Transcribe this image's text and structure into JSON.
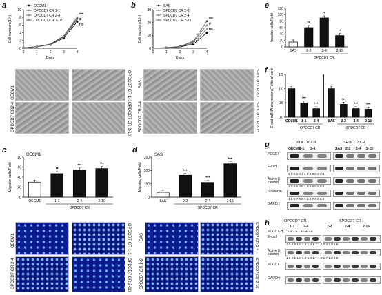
{
  "panels": {
    "a": {
      "label": "a",
      "chart_data": {
        "type": "line",
        "x": [
          0,
          1,
          2,
          3,
          4
        ],
        "series": [
          {
            "name": "OECM1",
            "values": [
              0.1,
              0.4,
              0.9,
              2.7,
              6.9
            ]
          },
          {
            "name": "OPDCD7 CR 1-1",
            "values": [
              0.1,
              0.4,
              1.0,
              3.0,
              7.7
            ]
          },
          {
            "name": "OPDCD7 CR 2-4",
            "values": [
              0.1,
              0.45,
              1.1,
              3.2,
              8.1
            ]
          },
          {
            "name": "OPDCD7 CR 2-10",
            "values": [
              0.1,
              0.42,
              1.0,
              3.0,
              7.4
            ]
          }
        ],
        "xlabel": "Days",
        "ylabel": "Cell numbers(10⁵)",
        "ylim": [
          0,
          10
        ],
        "yticks": [
          "0",
          "2",
          "4",
          "6",
          "8",
          "10"
        ],
        "xticks": [
          "0",
          "1",
          "2",
          "3",
          "4"
        ],
        "sig": [
          "***",
          "#",
          "ns"
        ]
      },
      "images": [
        {
          "name": "OECM1"
        },
        {
          "name": "OPDCD7 CR 1-1"
        },
        {
          "name": "OPDCD7 CR2-4"
        },
        {
          "name": "OPDCD7 CR 2-10"
        }
      ]
    },
    "b": {
      "label": "b",
      "chart_data": {
        "type": "line",
        "x": [
          0,
          1,
          2,
          3,
          4
        ],
        "series": [
          {
            "name": "SAS",
            "values": [
              0.1,
              0.4,
              1.0,
              3.2,
              12.0
            ]
          },
          {
            "name": "SPDCD7 CR 2-2",
            "values": [
              0.1,
              0.5,
              1.4,
              5.5,
              21.0
            ]
          },
          {
            "name": "SPDCD7 CR 2-4",
            "values": [
              0.1,
              0.5,
              1.3,
              5.0,
              18.0
            ]
          },
          {
            "name": "SPDCD7 CR 2-15",
            "values": [
              0.1,
              0.45,
              1.1,
              4.0,
              15.0
            ]
          }
        ],
        "xlabel": "Days",
        "ylabel": "Cell numbers(10⁵)",
        "ylim": [
          0,
          30
        ],
        "yticks": [
          "0",
          "10",
          "20",
          "30"
        ],
        "xticks": [
          "0",
          "1",
          "2",
          "3",
          "4"
        ],
        "sig": [
          "***",
          "#",
          "ns"
        ]
      },
      "images": [
        {
          "name": "SAS"
        },
        {
          "name": "SPDCD7 CR 2-2"
        },
        {
          "name": "SPDCD7 CR 2-4"
        },
        {
          "name": "SPDCD7 CR 2-15"
        }
      ]
    },
    "c": {
      "label": "c",
      "chart_data": {
        "type": "bar",
        "title": "OECM1",
        "categories": [
          "OECM1",
          "1-1",
          "2-4",
          "2-10"
        ],
        "values": [
          30,
          47,
          54,
          57
        ],
        "sig": [
          "",
          "**",
          "***",
          "***"
        ],
        "ylabel": "Migrated cells/Field",
        "ylim": [
          0,
          80
        ],
        "yticks": [
          "0",
          "20",
          "40",
          "60",
          "80"
        ],
        "group_label": "OPDCD7 CR"
      },
      "images": [
        {
          "name": "OECM1"
        },
        {
          "name": "OPDCD7 CR 1-1"
        },
        {
          "name": "OPDCD7 CR 2-4"
        },
        {
          "name": "OPDCD7 CR 2-10"
        }
      ]
    },
    "d": {
      "label": "d",
      "chart_data": {
        "type": "bar",
        "title": "SAS",
        "categories": [
          "SAS",
          "2-2",
          "2-4",
          "2-15"
        ],
        "values": [
          18,
          82,
          55,
          125
        ],
        "sig": [
          "",
          "***",
          "***",
          "***"
        ],
        "ylabel": "Migrated cells/Field",
        "ylim": [
          0,
          150
        ],
        "yticks": [
          "0",
          "50",
          "100",
          "150"
        ],
        "group_label": "SPDCD7 CR"
      },
      "images": [
        {
          "name": "SAS"
        },
        {
          "name": "SPDCD7 CR 2-4"
        },
        {
          "name": "SPDCD7 CR 2-2"
        },
        {
          "name": "SPDCD7 CR 2-15"
        }
      ]
    },
    "e": {
      "label": "e",
      "chart_data": {
        "type": "bar",
        "categories": [
          "SAS",
          "2-2",
          "2-4",
          "2-15"
        ],
        "values": [
          15,
          60,
          90,
          35
        ],
        "sig": [
          "",
          "**",
          "*",
          "**"
        ],
        "ylabel": "Invaded cells/Field",
        "ylim": [
          0,
          120
        ],
        "yticks": [
          "0",
          "20",
          "40",
          "60",
          "80",
          "100",
          "120"
        ],
        "group_label": "SPDCD7 CR"
      }
    },
    "f": {
      "label": "f",
      "chart_data": {
        "type": "bar",
        "categories": [
          "OECM1",
          "1-1",
          "2-4",
          "SAS",
          "2-2",
          "2-4",
          "2-15"
        ],
        "values": [
          1.0,
          0.5,
          0.3,
          1.0,
          0.45,
          0.3,
          0.28
        ],
        "sig": [
          "",
          "***",
          "***",
          "",
          "***",
          "***",
          "***"
        ],
        "ylabel": "E-cad mRNA expression (Folds of control)",
        "ylim": [
          0,
          1.5
        ],
        "yticks": [
          "0.0",
          "0.5",
          "1.0",
          "1.5"
        ],
        "group_labels": [
          "OPDCD7 CR",
          "SPDCD7 CR"
        ]
      }
    },
    "g": {
      "label": "g",
      "groups": [
        "OPDCD7 CR",
        "SPDCD7 CR"
      ],
      "lanes_left": [
        "OECM1",
        "1-1",
        "2-4"
      ],
      "lanes_right": [
        "SAS",
        "2-2",
        "2-4",
        "2-15"
      ],
      "rows": [
        {
          "name": "PDCD7",
          "nums": ""
        },
        {
          "name": "E-cad",
          "nums": "1.0  0.2  0.1   1.0  0.3  0.3  0.4"
        },
        {
          "name": "Active β-catenin",
          "nums": "1.0  0.6  0.5   1.0  0.6  0.5  0.5"
        },
        {
          "name": "β-catenin",
          "nums": "1.0  0.7  0.6   1.0  0.7  0.9  0.9"
        },
        {
          "name": "GAPDH",
          "nums": ""
        }
      ]
    },
    "h": {
      "label": "h",
      "groups": [
        "OPDCD7 CR",
        "SPDCD7 CR"
      ],
      "lanes_left": [
        "1-1",
        "2-4"
      ],
      "lanes_right": [
        "2-2",
        "2-4",
        "2-15"
      ],
      "treatment_label": "PDCD7-HO",
      "treatment_marks": "-   +   -   +        -   +   -   +   -   +",
      "rows": [
        {
          "name": "E-cad",
          "nums": "1.0 2.3  1.0 1.6     1.0 1.7  1.0 2.2  1.0 1.5"
        },
        {
          "name": "Active β-catenin",
          "nums": "1.0 2.1  1.0 1.8     1.0 1.7  1.0 1.7  1.0 4.5"
        },
        {
          "name": "PDCD7",
          "nums": ""
        },
        {
          "name": "GAPDH",
          "nums": ""
        }
      ]
    }
  }
}
